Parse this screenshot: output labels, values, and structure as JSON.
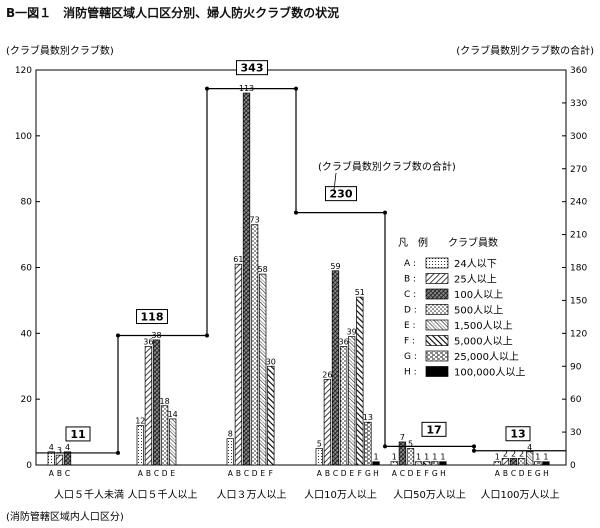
{
  "figure": {
    "title": "B一図１　消防管轄区域人口区分別、婦人防火クラブ数の状況",
    "left_axis_label": "(クラブ員数別クラブ数)",
    "right_axis_label": "(クラブ員数別クラブ数の合計)",
    "x_axis_label": "(消防管轄区域内人口区分)",
    "total_line_label": "(クラブ員数別クラブ数の合計)"
  },
  "legend": {
    "header_mark": "凡　例",
    "header_text": "クラブ員数",
    "items": [
      {
        "key": "A",
        "label": "24人以下"
      },
      {
        "key": "B",
        "label": "25人以上"
      },
      {
        "key": "C",
        "label": "100人以上"
      },
      {
        "key": "D",
        "label": "500人以上"
      },
      {
        "key": "E",
        "label": "1,500人以上"
      },
      {
        "key": "F",
        "label": "5,000人以上"
      },
      {
        "key": "G",
        "label": "25,000人以上"
      },
      {
        "key": "H",
        "label": "100,000人以上"
      }
    ]
  },
  "chart_data": {
    "type": "bar",
    "title": "消防管轄区域人口区分別、婦人防火クラブ数の状況",
    "xlabel": "消防管轄区域内人口区分",
    "ylabel_left": "クラブ員数別クラブ数",
    "ylabel_right": "クラブ員数別クラブ数の合計",
    "ylim_left": [
      0,
      120
    ],
    "ylim_right": [
      0,
      360
    ],
    "yticks_left": [
      0,
      20,
      40,
      60,
      80,
      100,
      120
    ],
    "yticks_right": [
      0,
      30,
      60,
      90,
      120,
      150,
      180,
      210,
      240,
      270,
      300,
      330,
      360
    ],
    "groups": [
      {
        "label": "人口５千人未満",
        "total": 11,
        "bars": [
          {
            "key": "A",
            "value": 4
          },
          {
            "key": "B",
            "value": 3
          },
          {
            "key": "C",
            "value": 4
          }
        ]
      },
      {
        "label": "人口５千人以上",
        "total": 118,
        "bars": [
          {
            "key": "A",
            "value": 12
          },
          {
            "key": "B",
            "value": 36
          },
          {
            "key": "C",
            "value": 38
          },
          {
            "key": "D",
            "value": 18
          },
          {
            "key": "E",
            "value": 14
          }
        ]
      },
      {
        "label": "人口３万人以上",
        "total": 343,
        "bars": [
          {
            "key": "A",
            "value": 8
          },
          {
            "key": "B",
            "value": 61
          },
          {
            "key": "C",
            "value": 113
          },
          {
            "key": "D",
            "value": 73
          },
          {
            "key": "E",
            "value": 58
          },
          {
            "key": "F",
            "value": 30
          }
        ]
      },
      {
        "label": "人口10万人以上",
        "total": 230,
        "bars": [
          {
            "key": "A",
            "value": 5
          },
          {
            "key": "B",
            "value": 26
          },
          {
            "key": "C",
            "value": 59
          },
          {
            "key": "D",
            "value": 36
          },
          {
            "key": "E",
            "value": 39
          },
          {
            "key": "F",
            "value": 51
          },
          {
            "key": "G",
            "value": 13
          },
          {
            "key": "H",
            "value": 1
          }
        ]
      },
      {
        "label": "人口50万人以上",
        "total": 17,
        "bars": [
          {
            "key": "A",
            "value": 1
          },
          {
            "key": "C",
            "value": 7
          },
          {
            "key": "D",
            "value": 5
          },
          {
            "key": "E",
            "value": 1
          },
          {
            "key": "F",
            "value": 1
          },
          {
            "key": "G",
            "value": 1
          },
          {
            "key": "H",
            "value": 1
          }
        ]
      },
      {
        "label": "人口100万人以上",
        "total": 13,
        "bars": [
          {
            "key": "A",
            "value": 1
          },
          {
            "key": "B",
            "value": 2
          },
          {
            "key": "C",
            "value": 2
          },
          {
            "key": "D",
            "value": 2
          },
          {
            "key": "E",
            "value": 4
          },
          {
            "key": "G",
            "value": 1
          },
          {
            "key": "H",
            "value": 1
          }
        ]
      }
    ]
  }
}
